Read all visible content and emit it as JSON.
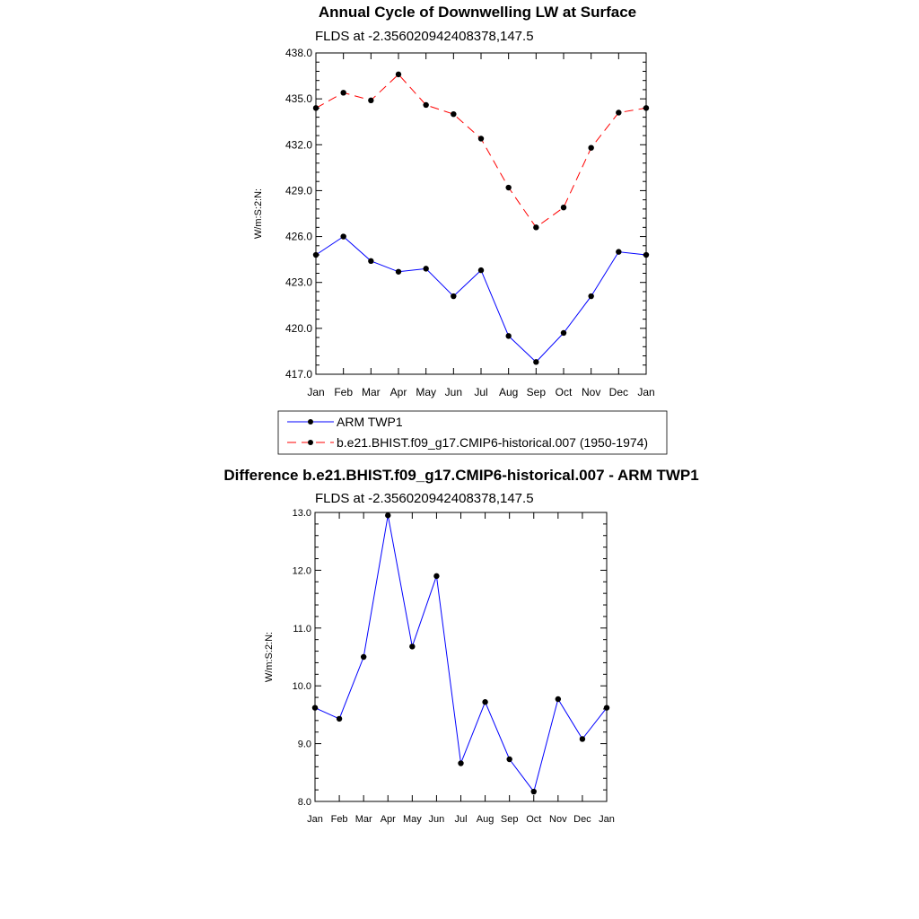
{
  "chart_data": [
    {
      "type": "line",
      "title": "Annual Cycle of Downwelling LW at Surface",
      "subtitle": "FLDS at -2.356020942408378,147.5",
      "ylabel": "W/m:S:2:N:",
      "xlabel": "",
      "categories": [
        "Jan",
        "Feb",
        "Mar",
        "Apr",
        "May",
        "Jun",
        "Jul",
        "Aug",
        "Sep",
        "Oct",
        "Nov",
        "Dec",
        "Jan"
      ],
      "ylim": [
        417.0,
        438.0
      ],
      "yticks": [
        "417.0",
        "420.0",
        "423.0",
        "426.0",
        "429.0",
        "432.0",
        "435.0",
        "438.0"
      ],
      "series": [
        {
          "name": "ARM TWP1",
          "color": "#0000ff",
          "dash": "solid",
          "values": [
            424.8,
            426.0,
            424.4,
            423.7,
            423.9,
            422.1,
            423.8,
            419.5,
            417.8,
            419.7,
            422.1,
            425.0,
            424.8
          ]
        },
        {
          "name": "b.e21.BHIST.f09_g17.CMIP6-historical.007 (1950-1974)",
          "color": "#ff0000",
          "dash": "dashed",
          "values": [
            434.4,
            435.4,
            434.9,
            436.6,
            434.6,
            434.0,
            432.4,
            429.2,
            426.6,
            427.9,
            431.8,
            434.1,
            434.4
          ]
        }
      ]
    },
    {
      "type": "line",
      "title": "Difference b.e21.BHIST.f09_g17.CMIP6-historical.007 - ARM TWP1",
      "subtitle": "FLDS at -2.356020942408378,147.5",
      "ylabel": "W/m:S:2:N:",
      "xlabel": "",
      "categories": [
        "Jan",
        "Feb",
        "Mar",
        "Apr",
        "May",
        "Jun",
        "Jul",
        "Aug",
        "Sep",
        "Oct",
        "Nov",
        "Dec",
        "Jan"
      ],
      "ylim": [
        8.0,
        13.0
      ],
      "yticks": [
        "8.0",
        "9.0",
        "10.0",
        "11.0",
        "12.0",
        "13.0"
      ],
      "series": [
        {
          "name": "Difference",
          "color": "#0000ff",
          "dash": "solid",
          "values": [
            9.62,
            9.43,
            10.5,
            12.95,
            10.68,
            11.9,
            8.66,
            9.72,
            8.73,
            8.17,
            9.77,
            9.08,
            9.62
          ]
        }
      ]
    }
  ]
}
